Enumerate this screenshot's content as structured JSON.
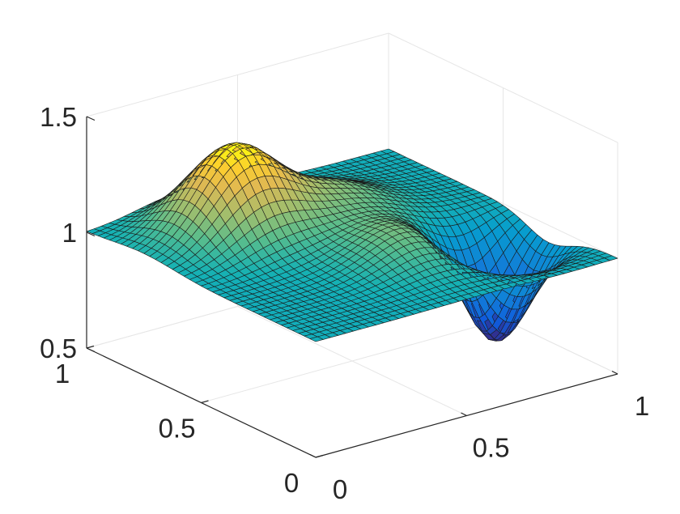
{
  "chart_data": {
    "type": "surface",
    "title": "",
    "xlabel": "",
    "ylabel": "",
    "zlabel": "",
    "xlim": [
      0,
      1
    ],
    "ylim": [
      0,
      1
    ],
    "zlim": [
      0.5,
      1.5
    ],
    "x_ticks": [
      {
        "value": 0,
        "label": "0"
      },
      {
        "value": 0.5,
        "label": "0.5"
      },
      {
        "value": 1,
        "label": "1"
      }
    ],
    "y_ticks": [
      {
        "value": 0,
        "label": "0"
      },
      {
        "value": 0.5,
        "label": "0.5"
      },
      {
        "value": 1,
        "label": "1"
      }
    ],
    "z_ticks": [
      {
        "value": 0.5,
        "label": "0.5"
      },
      {
        "value": 1,
        "label": "1"
      },
      {
        "value": 1.5,
        "label": "1.5"
      }
    ],
    "grid": true,
    "colormap": "parula",
    "mesh_resolution": 41,
    "baseline": 1.0,
    "features": [
      {
        "kind": "peak",
        "x": 0.3,
        "y": 0.75,
        "z": 1.38
      },
      {
        "kind": "peak",
        "x": 0.6,
        "y": 0.7,
        "z": 1.12
      },
      {
        "kind": "peak",
        "x": 0.55,
        "y": 0.35,
        "z": 1.13
      },
      {
        "kind": "trough",
        "x": 0.82,
        "y": 0.3,
        "z": 0.55
      }
    ]
  }
}
